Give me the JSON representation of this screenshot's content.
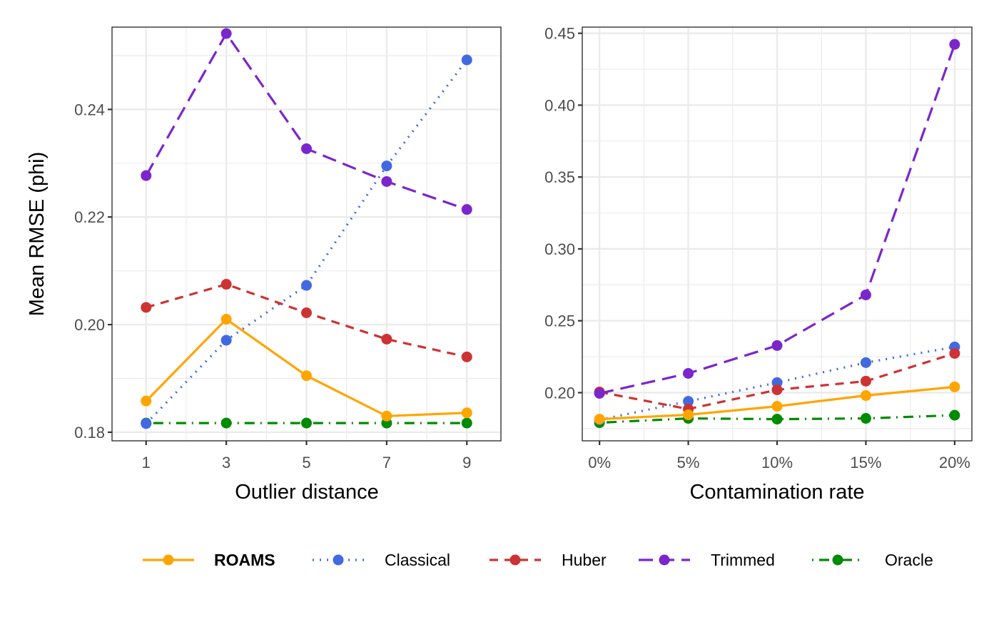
{
  "chart_data": [
    {
      "type": "line",
      "xlabel": "Outlier distance",
      "ylabel": "Mean RMSE (phi)",
      "x": [
        1,
        3,
        5,
        7,
        9
      ],
      "xticks": [
        "1",
        "3",
        "5",
        "7",
        "9"
      ],
      "xlim": [
        0.15,
        9.85
      ],
      "yticks": [
        "0.18",
        "0.20",
        "0.22",
        "0.24"
      ],
      "ytick_values": [
        0.18,
        0.2,
        0.22,
        0.24
      ],
      "ylim": [
        0.1784,
        0.2553
      ],
      "grid": true,
      "series": [
        {
          "name": "ROAMS",
          "values": [
            0.1858,
            0.201,
            0.1905,
            0.183,
            0.1836
          ]
        },
        {
          "name": "Classical",
          "values": [
            0.1816,
            0.1971,
            0.2073,
            0.2295,
            0.2492
          ]
        },
        {
          "name": "Huber",
          "values": [
            0.2032,
            0.2075,
            0.2022,
            0.1973,
            0.194
          ]
        },
        {
          "name": "Trimmed",
          "values": [
            0.2277,
            0.2541,
            0.2327,
            0.2266,
            0.2214
          ]
        },
        {
          "name": "Oracle",
          "values": [
            0.1817,
            0.1817,
            0.1817,
            0.1817,
            0.1817
          ]
        }
      ]
    },
    {
      "type": "line",
      "xlabel": "Contamination rate",
      "ylabel": "",
      "x": [
        0,
        5,
        10,
        15,
        20
      ],
      "xticks": [
        "0%",
        "5%",
        "10%",
        "15%",
        "20%"
      ],
      "xlim": [
        -0.97,
        20.97
      ],
      "yticks": [
        "0.20",
        "0.25",
        "0.30",
        "0.35",
        "0.40",
        "0.45"
      ],
      "ytick_values": [
        0.2,
        0.25,
        0.3,
        0.35,
        0.4,
        0.45
      ],
      "ylim": [
        0.1665,
        0.4543
      ],
      "grid": true,
      "series": [
        {
          "name": "ROAMS",
          "values": [
            0.1816,
            0.1846,
            0.1905,
            0.198,
            0.204
          ]
        },
        {
          "name": "Classical",
          "values": [
            0.1811,
            0.194,
            0.207,
            0.2209,
            0.2318
          ]
        },
        {
          "name": "Huber",
          "values": [
            0.2005,
            0.1886,
            0.202,
            0.208,
            0.2273
          ]
        },
        {
          "name": "Trimmed",
          "values": [
            0.1995,
            0.2134,
            0.2328,
            0.268,
            0.4423
          ]
        },
        {
          "name": "Oracle",
          "values": [
            0.1791,
            0.1821,
            0.1816,
            0.1821,
            0.1843
          ]
        }
      ]
    }
  ],
  "legend": {
    "position": "bottom",
    "items": [
      {
        "name": "ROAMS",
        "color": "#FFA500",
        "dash": "solid",
        "bold": true
      },
      {
        "name": "Classical",
        "color": "#4169E1",
        "dash": "dotted",
        "bold": false
      },
      {
        "name": "Huber",
        "color": "#CD3333",
        "dash": "dashed",
        "bold": false
      },
      {
        "name": "Trimmed",
        "color": "#7B26CD",
        "dash": "longdash",
        "bold": false
      },
      {
        "name": "Oracle",
        "color": "#008B00",
        "dash": "dotdash",
        "bold": false
      }
    ]
  }
}
